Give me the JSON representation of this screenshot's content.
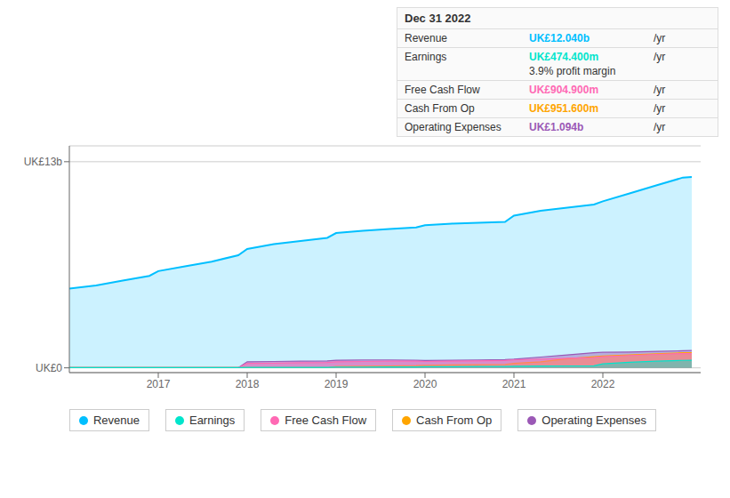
{
  "chart_data": {
    "type": "area",
    "x": [
      2016.0,
      2016.3,
      2016.6,
      2016.9,
      2017.0,
      2017.3,
      2017.6,
      2017.9,
      2018.0,
      2018.3,
      2018.6,
      2018.9,
      2019.0,
      2019.3,
      2019.6,
      2019.9,
      2020.0,
      2020.3,
      2020.6,
      2020.9,
      2021.0,
      2021.3,
      2021.6,
      2021.9,
      2022.0,
      2022.3,
      2022.6,
      2022.9,
      2023.0
    ],
    "xlim": [
      2016.0,
      2023.1
    ],
    "xticks": [
      2017,
      2018,
      2019,
      2020,
      2021,
      2022
    ],
    "ylim": [
      -0.3,
      14.0
    ],
    "yticks": [
      {
        "value": 0,
        "label": "UK£0"
      },
      {
        "value": 13,
        "label": "UK£13b"
      }
    ],
    "grid": true,
    "legend": "bottom",
    "series": [
      {
        "name": "Revenue",
        "color": "#00bfff",
        "values": [
          5.0,
          5.2,
          5.5,
          5.8,
          6.1,
          6.4,
          6.7,
          7.1,
          7.5,
          7.8,
          8.0,
          8.2,
          8.5,
          8.65,
          8.75,
          8.85,
          9.0,
          9.1,
          9.15,
          9.2,
          9.6,
          9.9,
          10.1,
          10.3,
          10.5,
          11.0,
          11.5,
          12.0,
          12.04
        ]
      },
      {
        "name": "Earnings",
        "color": "#00e5cc",
        "values": [
          0.01,
          0.01,
          0.01,
          0.01,
          0.02,
          0.02,
          0.02,
          0.02,
          0.03,
          0.03,
          0.03,
          0.03,
          0.05,
          0.05,
          0.06,
          0.06,
          0.07,
          0.07,
          0.08,
          0.08,
          0.1,
          0.11,
          0.12,
          0.13,
          0.25,
          0.35,
          0.42,
          0.47,
          0.474
        ]
      },
      {
        "name": "Free Cash Flow",
        "color": "#ff69b4",
        "values": [
          0.01,
          0.01,
          0.01,
          0.01,
          0.01,
          0.01,
          0.01,
          0.01,
          0.28,
          0.3,
          0.32,
          0.34,
          0.38,
          0.4,
          0.42,
          0.42,
          0.4,
          0.42,
          0.44,
          0.46,
          0.5,
          0.55,
          0.6,
          0.65,
          0.7,
          0.78,
          0.85,
          0.9,
          0.904
        ]
      },
      {
        "name": "Cash From Op",
        "color": "#ffa500",
        "values": [
          0.01,
          0.01,
          0.01,
          0.01,
          0.01,
          0.01,
          0.01,
          0.01,
          0.01,
          0.01,
          0.01,
          0.01,
          0.08,
          0.1,
          0.12,
          0.14,
          0.16,
          0.18,
          0.2,
          0.22,
          0.28,
          0.38,
          0.58,
          0.7,
          0.75,
          0.82,
          0.88,
          0.95,
          0.9516
        ]
      },
      {
        "name": "Operating Expenses",
        "color": "#9b59b6",
        "values": [
          0.01,
          0.01,
          0.01,
          0.01,
          0.01,
          0.01,
          0.01,
          0.01,
          0.38,
          0.4,
          0.42,
          0.44,
          0.48,
          0.5,
          0.5,
          0.48,
          0.46,
          0.48,
          0.5,
          0.52,
          0.55,
          0.68,
          0.82,
          0.95,
          0.98,
          1.0,
          1.04,
          1.08,
          1.094
        ]
      }
    ],
    "annotations": {
      "title": "Dec 31 2022",
      "rows": [
        {
          "label": "Revenue",
          "value": "UK£12.040b",
          "color": "#00bfff",
          "suffix": "/yr"
        },
        {
          "label": "Earnings",
          "value": "UK£474.400m",
          "color": "#00e5cc",
          "suffix": "/yr",
          "sub": "3.9% profit margin"
        },
        {
          "label": "Free Cash Flow",
          "value": "UK£904.900m",
          "color": "#ff69b4",
          "suffix": "/yr"
        },
        {
          "label": "Cash From Op",
          "value": "UK£951.600m",
          "color": "#ffa500",
          "suffix": "/yr"
        },
        {
          "label": "Operating Expenses",
          "value": "UK£1.094b",
          "color": "#9b59b6",
          "suffix": "/yr"
        }
      ]
    }
  }
}
